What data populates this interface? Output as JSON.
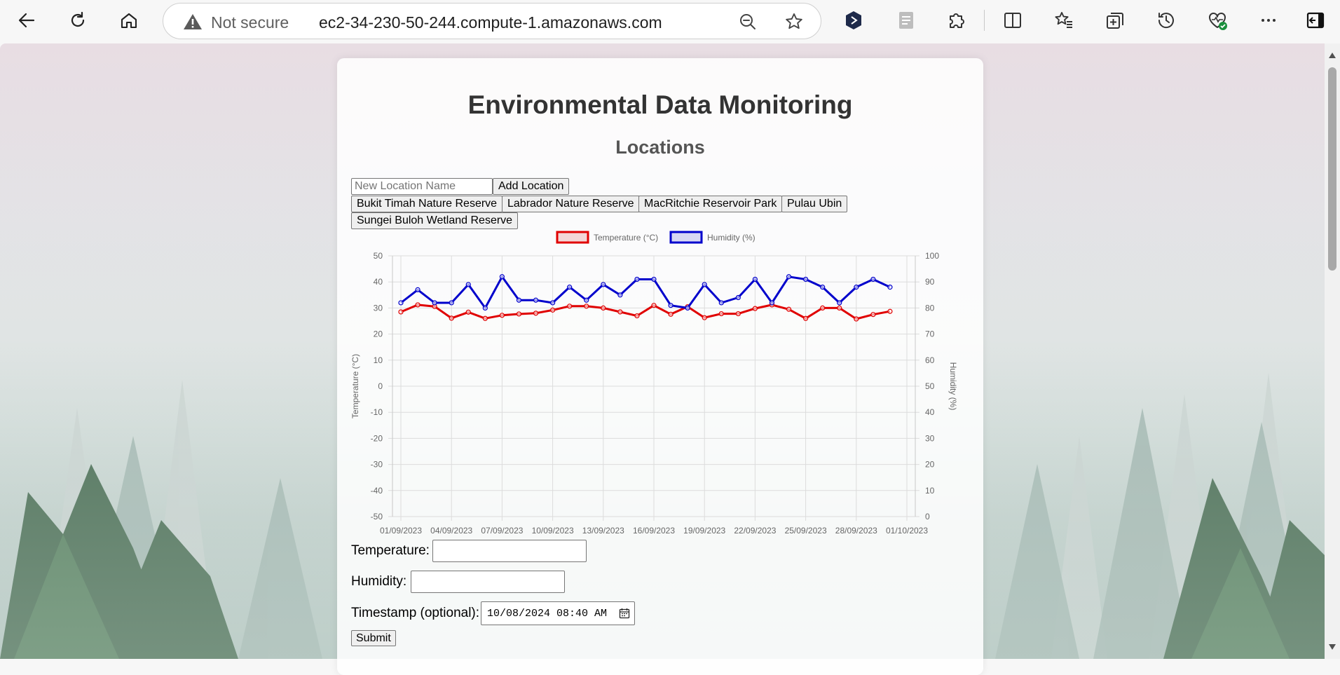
{
  "browser": {
    "security_label": "Not secure",
    "url": "ec2-34-230-50-244.compute-1.amazonaws.com"
  },
  "page": {
    "title": "Environmental Data Monitoring",
    "locations_heading": "Locations",
    "new_location_placeholder": "New Location Name",
    "add_location_label": "Add Location",
    "locations": [
      "Bukit Timah Nature Reserve",
      "Labrador Nature Reserve",
      "MacRitchie Reservoir Park",
      "Pulau Ubin",
      "Sungei Buloh Wetland Reserve"
    ],
    "form": {
      "temperature_label": "Temperature:",
      "humidity_label": "Humidity:",
      "timestamp_label": "Timestamp (optional):",
      "timestamp_value": "10/08/2024 08:40 AM",
      "submit_label": "Submit"
    }
  },
  "chart_data": {
    "type": "line",
    "x": [
      "01/09/2023",
      "02/09/2023",
      "03/09/2023",
      "04/09/2023",
      "05/09/2023",
      "06/09/2023",
      "07/09/2023",
      "08/09/2023",
      "09/09/2023",
      "10/09/2023",
      "11/09/2023",
      "12/09/2023",
      "13/09/2023",
      "14/09/2023",
      "15/09/2023",
      "16/09/2023",
      "17/09/2023",
      "18/09/2023",
      "19/09/2023",
      "20/09/2023",
      "21/09/2023",
      "22/09/2023",
      "23/09/2023",
      "24/09/2023",
      "25/09/2023",
      "26/09/2023",
      "27/09/2023",
      "28/09/2023",
      "29/09/2023",
      "30/09/2023"
    ],
    "x_tick_labels": [
      "01/09/2023",
      "04/09/2023",
      "07/09/2023",
      "10/09/2023",
      "13/09/2023",
      "16/09/2023",
      "19/09/2023",
      "22/09/2023",
      "25/09/2023",
      "28/09/2023",
      "01/10/2023"
    ],
    "series": [
      {
        "name": "Temperature (°C)",
        "axis": "left",
        "color": "#e00000",
        "values": [
          28.5,
          31.2,
          30.6,
          26.1,
          28.4,
          26.0,
          27.2,
          27.7,
          28.0,
          29.2,
          30.7,
          30.7,
          30.0,
          28.5,
          27.0,
          31.0,
          27.6,
          30.5,
          26.3,
          27.8,
          27.8,
          29.8,
          31.2,
          29.5,
          26.0,
          30.0,
          30.0,
          25.8,
          27.5,
          28.7
        ]
      },
      {
        "name": "Humidity (%)",
        "axis": "right",
        "color": "#0000cc",
        "values": [
          82,
          87,
          82,
          82,
          89,
          80,
          92,
          83,
          83,
          82,
          88,
          83,
          89,
          85,
          91,
          91,
          81,
          80,
          89,
          82,
          84,
          91,
          82,
          92,
          91,
          88,
          82,
          88,
          91,
          88
        ]
      }
    ],
    "ylabel_left": "Temperature (°C)",
    "ylabel_right": "Humidity (%)",
    "ylim_left": [
      -50,
      50
    ],
    "ylim_right": [
      0,
      100
    ],
    "yticks_left": [
      50,
      40,
      30,
      20,
      10,
      0,
      -10,
      -20,
      -30,
      -40,
      -50
    ],
    "yticks_right": [
      100,
      90,
      80,
      70,
      60,
      50,
      40,
      30,
      20,
      10,
      0
    ],
    "grid": true,
    "legend_position": "top-center"
  }
}
